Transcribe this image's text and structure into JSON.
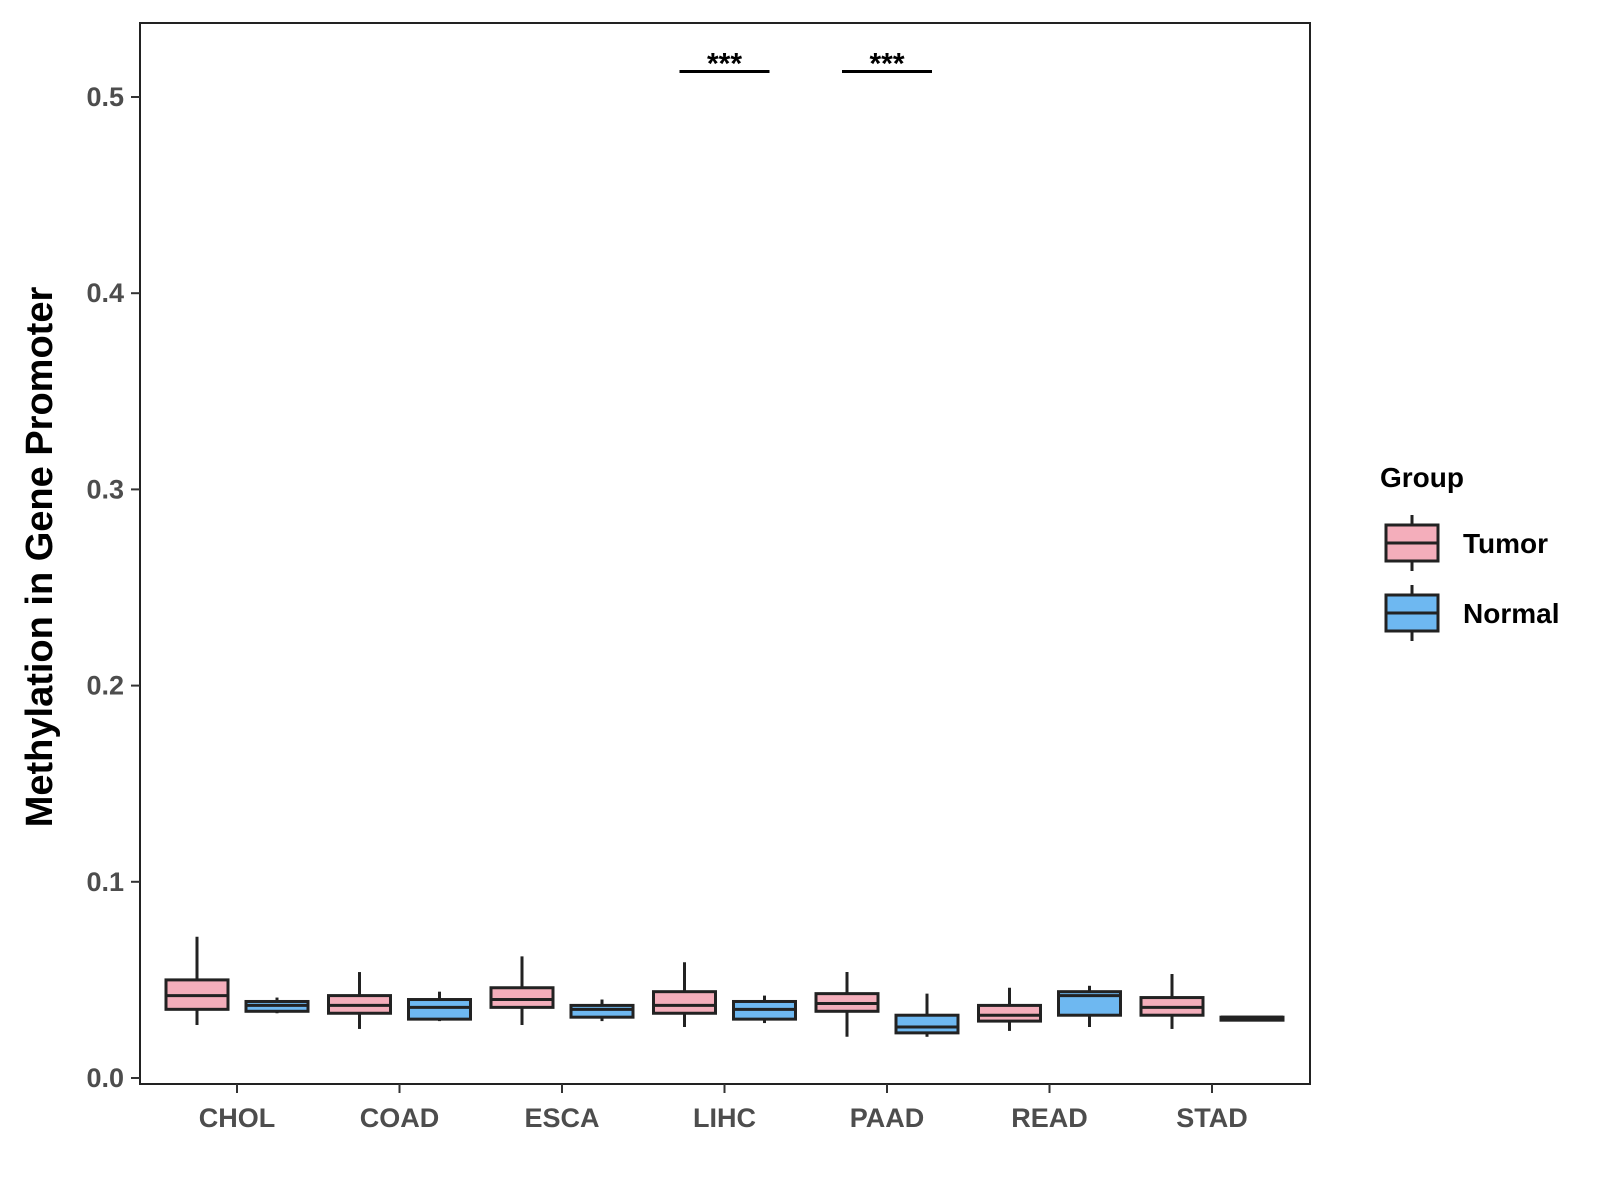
{
  "chart_data": {
    "type": "boxplot",
    "title": "",
    "xlabel": "",
    "ylabel": "Methylation in Gene Promoter",
    "ylim": [
      0,
      0.53
    ],
    "yticks": [
      0.0,
      0.1,
      0.2,
      0.3,
      0.4,
      0.5
    ],
    "ytick_labels": [
      "0.0",
      "0.1",
      "0.2",
      "0.3",
      "0.4",
      "0.5"
    ],
    "categories": [
      "CHOL",
      "COAD",
      "ESCA",
      "LIHC",
      "PAAD",
      "READ",
      "STAD"
    ],
    "legend": {
      "title": "Group",
      "position": "right",
      "entries": [
        {
          "name": "Tumor",
          "color": "#F4AEBB"
        },
        {
          "name": "Normal",
          "color": "#6EB8F1"
        }
      ]
    },
    "series": [
      {
        "name": "Tumor",
        "color": "#F4AEBB",
        "boxes": [
          {
            "category": "CHOL",
            "min": 0.027,
            "q1": 0.035,
            "median": 0.042,
            "q3": 0.05,
            "max": 0.072
          },
          {
            "category": "COAD",
            "min": 0.025,
            "q1": 0.033,
            "median": 0.037,
            "q3": 0.042,
            "max": 0.054
          },
          {
            "category": "ESCA",
            "min": 0.027,
            "q1": 0.036,
            "median": 0.04,
            "q3": 0.046,
            "max": 0.062
          },
          {
            "category": "LIHC",
            "min": 0.026,
            "q1": 0.033,
            "median": 0.037,
            "q3": 0.044,
            "max": 0.059
          },
          {
            "category": "PAAD",
            "min": 0.021,
            "q1": 0.034,
            "median": 0.038,
            "q3": 0.043,
            "max": 0.054
          },
          {
            "category": "READ",
            "min": 0.024,
            "q1": 0.029,
            "median": 0.032,
            "q3": 0.037,
            "max": 0.046
          },
          {
            "category": "STAD",
            "min": 0.025,
            "q1": 0.032,
            "median": 0.036,
            "q3": 0.041,
            "max": 0.053
          }
        ]
      },
      {
        "name": "Normal",
        "color": "#6EB8F1",
        "boxes": [
          {
            "category": "CHOL",
            "min": 0.033,
            "q1": 0.034,
            "median": 0.037,
            "q3": 0.039,
            "max": 0.041
          },
          {
            "category": "COAD",
            "min": 0.029,
            "q1": 0.03,
            "median": 0.036,
            "q3": 0.04,
            "max": 0.044
          },
          {
            "category": "ESCA",
            "min": 0.029,
            "q1": 0.031,
            "median": 0.035,
            "q3": 0.037,
            "max": 0.04
          },
          {
            "category": "LIHC",
            "min": 0.028,
            "q1": 0.03,
            "median": 0.035,
            "q3": 0.039,
            "max": 0.042
          },
          {
            "category": "PAAD",
            "min": 0.021,
            "q1": 0.023,
            "median": 0.026,
            "q3": 0.032,
            "max": 0.043
          },
          {
            "category": "READ",
            "min": 0.026,
            "q1": 0.032,
            "median": 0.042,
            "q3": 0.044,
            "max": 0.047
          },
          {
            "category": "STAD",
            "min": 0.03,
            "q1": 0.03,
            "median": 0.031,
            "q3": 0.031,
            "max": 0.031
          }
        ]
      }
    ],
    "annotations": [
      {
        "category": "LIHC",
        "text": "***",
        "y": 0.513
      },
      {
        "category": "PAAD",
        "text": "***",
        "y": 0.513
      }
    ]
  }
}
